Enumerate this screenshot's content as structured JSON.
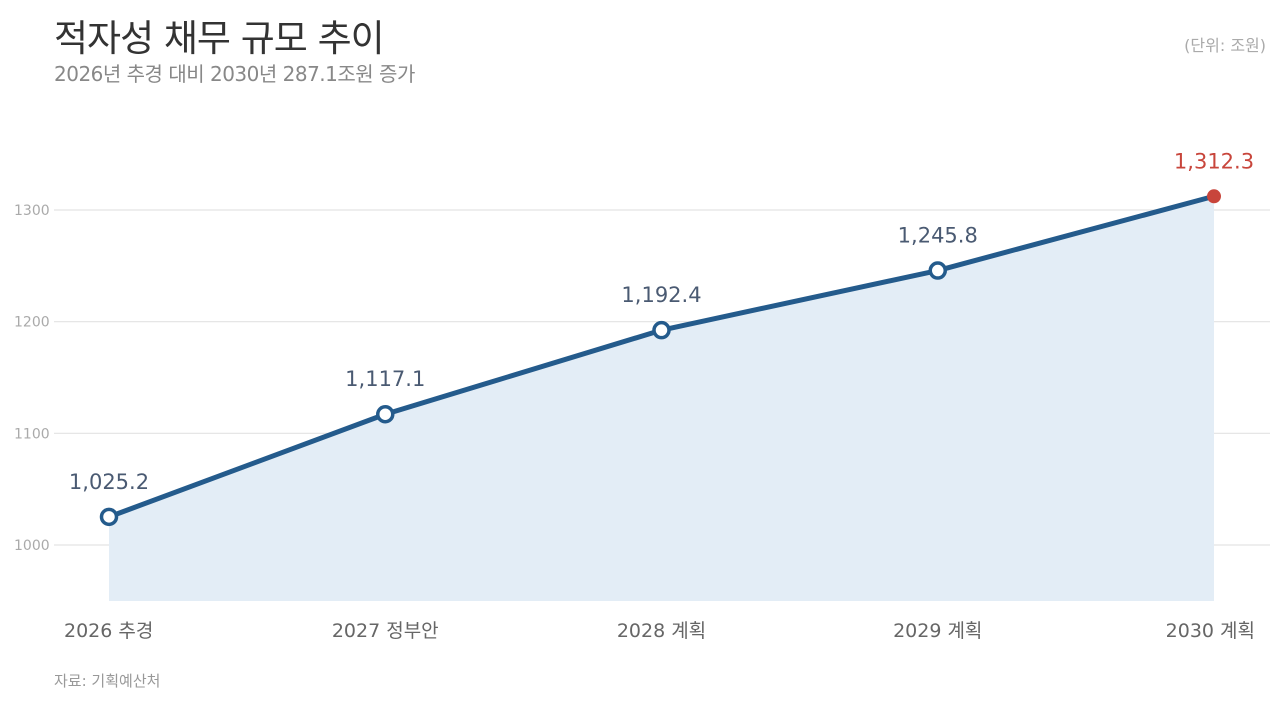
{
  "title": "적자성 채무 규모 추이",
  "subtitle": "2026년 추경 대비 2030년 287.1조원 증가",
  "unit": "(단위: 조원)",
  "source": "자료: 기획예산처",
  "colors": {
    "line": "#245b8c",
    "area": "#e3edf6",
    "highlight": "#c8453b",
    "grid": "#e3e3e3",
    "label": "#4a5a72"
  },
  "chart_data": {
    "type": "area",
    "categories": [
      "2026 추경",
      "2027 정부안",
      "2028 계획",
      "2029 계획",
      "2030 계획"
    ],
    "values": [
      1025.2,
      1117.1,
      1192.4,
      1245.8,
      1312.3
    ],
    "value_labels": [
      "1,025.2",
      "1,117.1",
      "1,192.4",
      "1,245.8",
      "1,312.3"
    ],
    "highlight_index": 4,
    "yticks": [
      1000,
      1100,
      1200,
      1300
    ],
    "ylim": [
      950,
      1350
    ],
    "grid": true
  }
}
